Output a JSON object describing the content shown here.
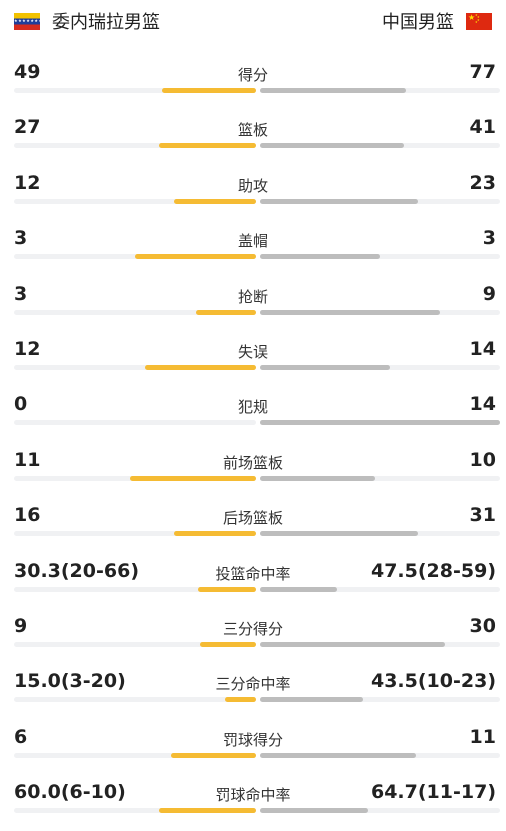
{
  "header": {
    "home_team": "委内瑞拉男篮",
    "away_team": "中国男篮"
  },
  "colors": {
    "home_bar": "#f5bb33",
    "away_bar": "#bdbdbd",
    "track": "#f0f1f3"
  },
  "stats": [
    {
      "label": "得分",
      "left": "49",
      "right": "77",
      "left_fraction": 0.39,
      "right_fraction": 0.61
    },
    {
      "label": "篮板",
      "left": "27",
      "right": "41",
      "left_fraction": 0.4,
      "right_fraction": 0.6
    },
    {
      "label": "助攻",
      "left": "12",
      "right": "23",
      "left_fraction": 0.34,
      "right_fraction": 0.66
    },
    {
      "label": "盖帽",
      "left": "3",
      "right": "3",
      "left_fraction": 0.5,
      "right_fraction": 0.5
    },
    {
      "label": "抢断",
      "left": "3",
      "right": "9",
      "left_fraction": 0.25,
      "right_fraction": 0.75
    },
    {
      "label": "失误",
      "left": "12",
      "right": "14",
      "left_fraction": 0.46,
      "right_fraction": 0.54
    },
    {
      "label": "犯规",
      "left": "0",
      "right": "14",
      "left_fraction": 0.0,
      "right_fraction": 1.0
    },
    {
      "label": "前场篮板",
      "left": "11",
      "right": "10",
      "left_fraction": 0.52,
      "right_fraction": 0.48
    },
    {
      "label": "后场篮板",
      "left": "16",
      "right": "31",
      "left_fraction": 0.34,
      "right_fraction": 0.66
    },
    {
      "label": "投篮命中率",
      "left": "30.3(20-66)",
      "right": "47.5(28-59)",
      "left_fraction": 0.24,
      "right_fraction": 0.32
    },
    {
      "label": "三分得分",
      "left": "9",
      "right": "30",
      "left_fraction": 0.23,
      "right_fraction": 0.77
    },
    {
      "label": "三分命中率",
      "left": "15.0(3-20)",
      "right": "43.5(10-23)",
      "left_fraction": 0.13,
      "right_fraction": 0.43
    },
    {
      "label": "罚球得分",
      "left": "6",
      "right": "11",
      "left_fraction": 0.35,
      "right_fraction": 0.65
    },
    {
      "label": "罚球命中率",
      "left": "60.0(6-10)",
      "right": "64.7(11-17)",
      "left_fraction": 0.4,
      "right_fraction": 0.45
    }
  ]
}
